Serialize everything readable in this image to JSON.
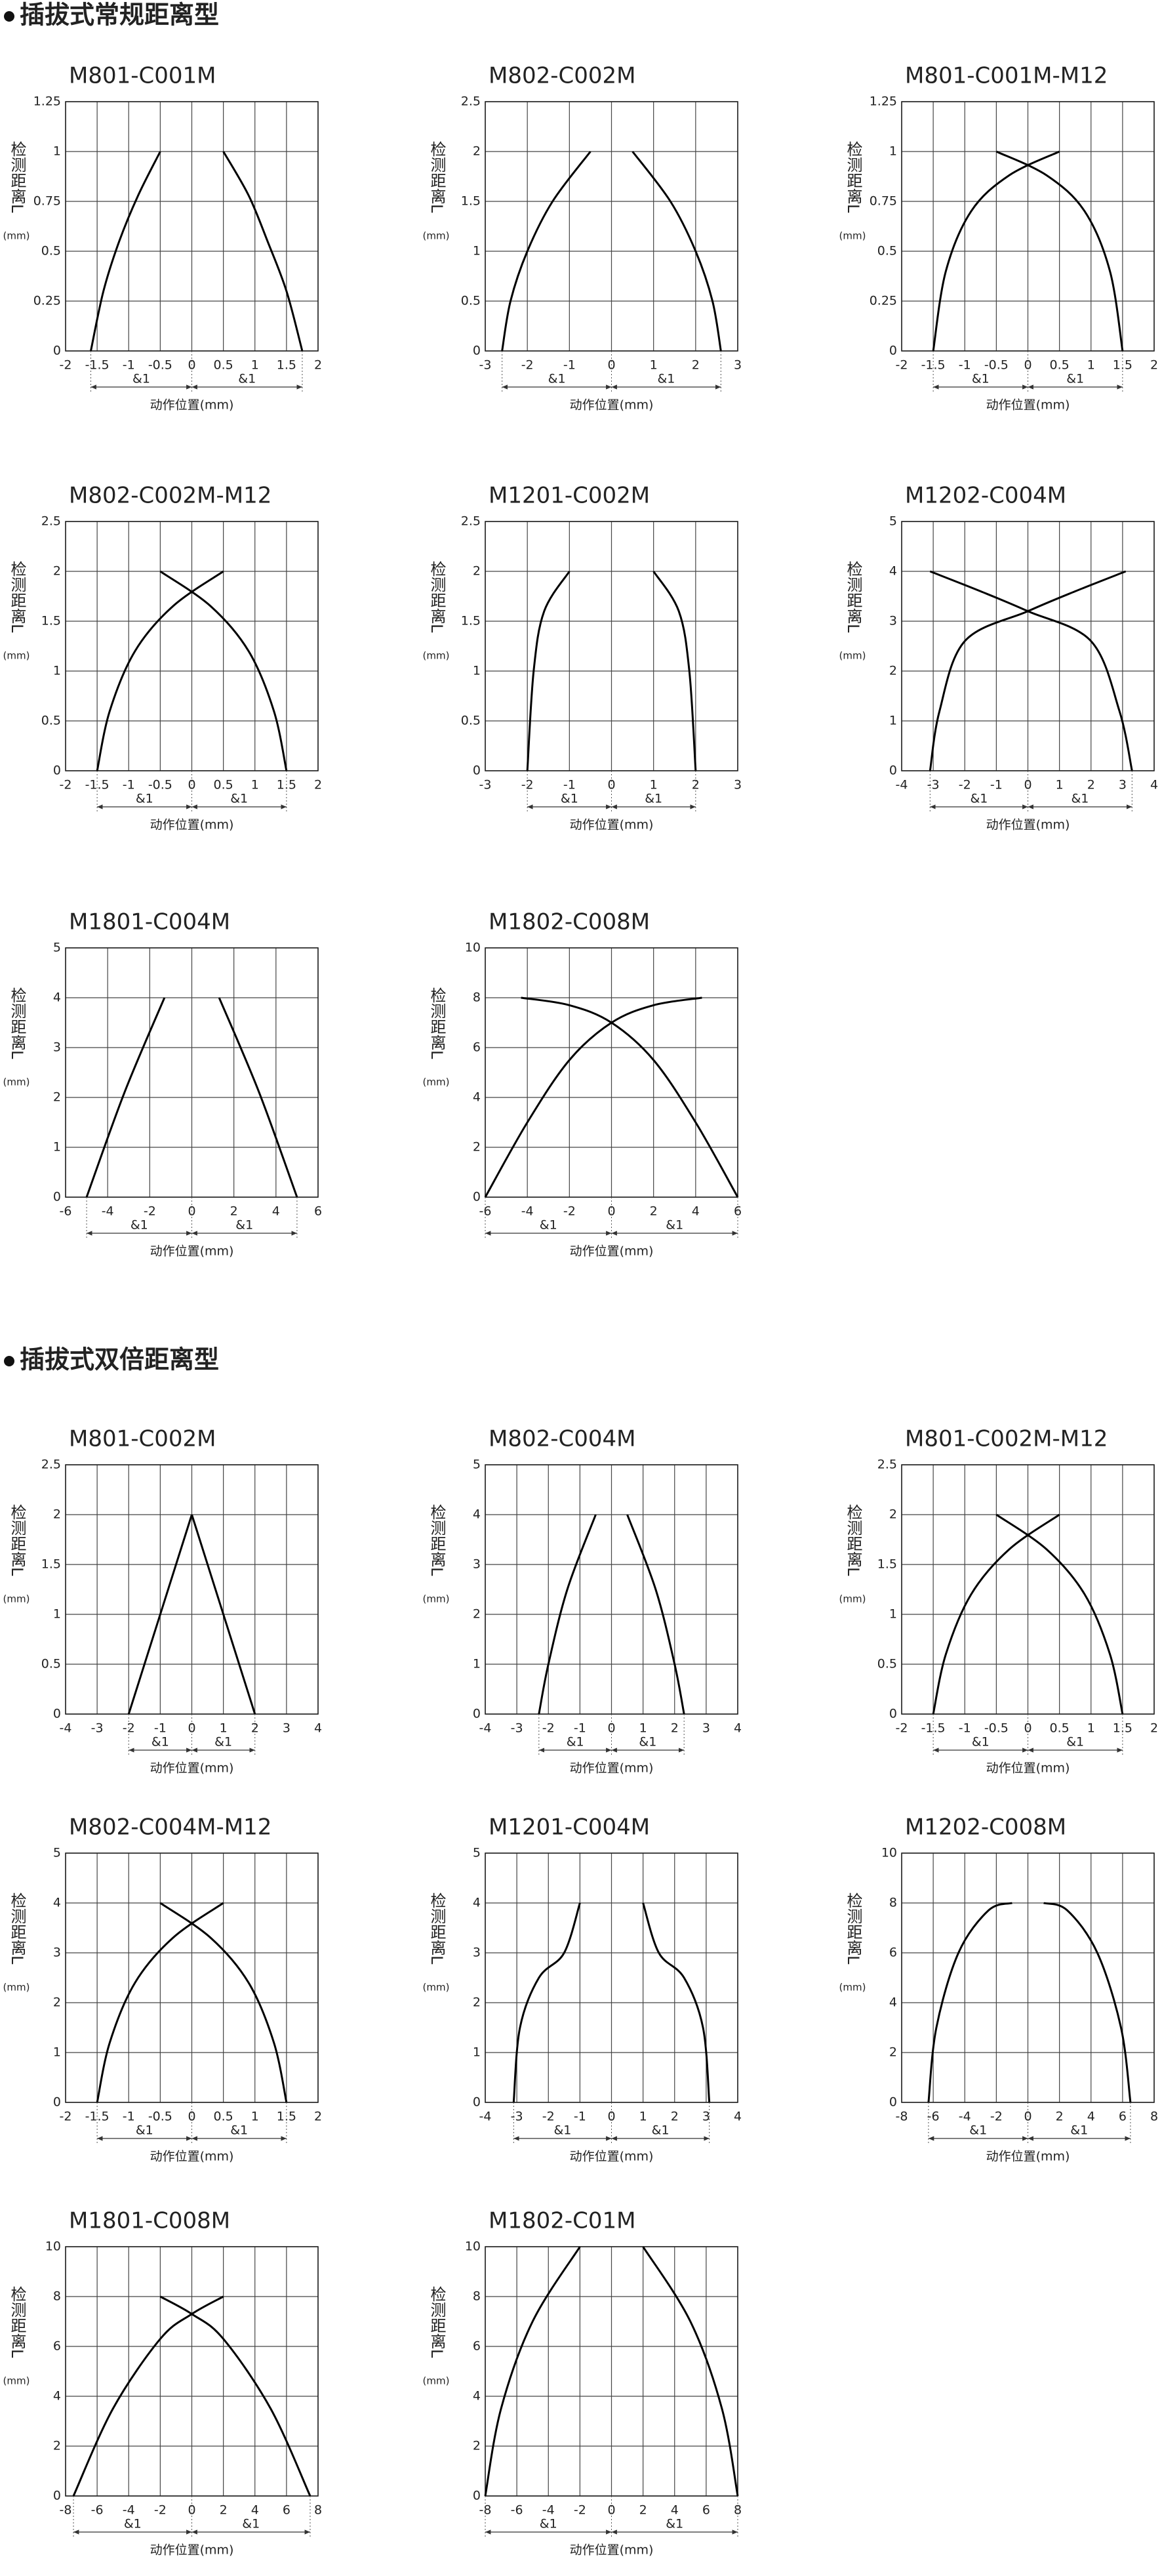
{
  "sections": [
    {
      "title": "插拔式常规距离型"
    },
    {
      "title": "插拔式双倍距离型"
    }
  ],
  "chart_data": [
    {
      "type": "line",
      "title": "M801-C001M",
      "ylabel": "检测距离L",
      "ylabel_unit": "(mm)",
      "xlabel": "动作位置(mm)",
      "annotations": [
        "&1",
        "&1"
      ],
      "xlim": [
        -2,
        2
      ],
      "xticks": [
        -2,
        -1.5,
        -1,
        -0.5,
        0,
        0.5,
        1,
        1.5,
        2
      ],
      "ylim": [
        0,
        1.25
      ],
      "yticks": [
        0,
        0.25,
        0.5,
        0.75,
        1,
        1.25
      ],
      "grid": true,
      "series": [
        {
          "color": "#000000",
          "x": [
            -1.6,
            -1.4,
            -1.15,
            -0.85,
            -0.5
          ],
          "values": [
            0,
            0.3,
            0.55,
            0.78,
            1
          ]
        },
        {
          "color": "#000000",
          "x": [
            0.5,
            0.9,
            1.2,
            1.5,
            1.75
          ],
          "values": [
            1,
            0.78,
            0.55,
            0.3,
            0
          ]
        }
      ]
    },
    {
      "type": "line",
      "title": "M802-C002M",
      "ylabel": "检测距离L",
      "ylabel_unit": "(mm)",
      "xlabel": "动作位置(mm)",
      "annotations": [
        "&1",
        "&1"
      ],
      "xlim": [
        -3,
        3
      ],
      "xticks": [
        -3,
        -2,
        -1,
        0,
        1,
        2,
        3
      ],
      "ylim": [
        0,
        2.5
      ],
      "yticks": [
        0,
        0.5,
        1,
        1.5,
        2,
        2.5
      ],
      "grid": true,
      "series": [
        {
          "color": "#000000",
          "x": [
            -2.6,
            -2.4,
            -2,
            -1.4,
            -0.5
          ],
          "values": [
            0,
            0.5,
            1,
            1.5,
            2
          ]
        },
        {
          "color": "#000000",
          "x": [
            0.5,
            1.4,
            2,
            2.4,
            2.6
          ],
          "values": [
            2,
            1.5,
            1,
            0.5,
            0
          ]
        }
      ]
    },
    {
      "type": "line",
      "title": "M801-C001M-M12",
      "ylabel": "检测距离L",
      "ylabel_unit": "(mm)",
      "xlabel": "动作位置(mm)",
      "annotations": [
        "&1",
        "&1"
      ],
      "xlim": [
        -2,
        2
      ],
      "xticks": [
        -2,
        -1.5,
        -1,
        -0.5,
        0,
        0.5,
        1,
        1.5,
        2
      ],
      "ylim": [
        0,
        1.25
      ],
      "yticks": [
        0,
        0.25,
        0.5,
        0.75,
        1,
        1.25
      ],
      "grid": true,
      "series": [
        {
          "color": "#000000",
          "x": [
            -1.5,
            -1.3,
            -0.9,
            -0.3,
            0.5
          ],
          "values": [
            0,
            0.4,
            0.7,
            0.88,
            1
          ]
        },
        {
          "color": "#000000",
          "x": [
            -0.5,
            0.3,
            0.9,
            1.3,
            1.5
          ],
          "values": [
            1,
            0.88,
            0.7,
            0.4,
            0
          ]
        }
      ]
    },
    {
      "type": "line",
      "title": "M802-C002M-M12",
      "ylabel": "检测距离L",
      "ylabel_unit": "(mm)",
      "xlabel": "动作位置(mm)",
      "annotations": [
        "&1",
        "&1"
      ],
      "xlim": [
        -2,
        2
      ],
      "xticks": [
        -2,
        -1.5,
        -1,
        -0.5,
        0,
        0.5,
        1,
        1.5,
        2
      ],
      "ylim": [
        0,
        2.5
      ],
      "yticks": [
        0,
        0.5,
        1,
        1.5,
        2,
        2.5
      ],
      "grid": true,
      "series": [
        {
          "color": "#000000",
          "x": [
            -1.5,
            -1.3,
            -0.9,
            -0.3,
            0.5
          ],
          "values": [
            0,
            0.6,
            1.2,
            1.65,
            2
          ]
        },
        {
          "color": "#000000",
          "x": [
            -0.5,
            0.3,
            0.9,
            1.3,
            1.5
          ],
          "values": [
            2,
            1.65,
            1.2,
            0.6,
            0
          ]
        }
      ]
    },
    {
      "type": "line",
      "title": "M1201-C002M",
      "ylabel": "检测距离L",
      "ylabel_unit": "(mm)",
      "xlabel": "动作位置(mm)",
      "annotations": [
        "&1",
        "&1"
      ],
      "xlim": [
        -3,
        3
      ],
      "xticks": [
        -3,
        -2,
        -1,
        0,
        1,
        2,
        3
      ],
      "ylim": [
        0,
        2.5
      ],
      "yticks": [
        0,
        0.5,
        1,
        1.5,
        2,
        2.5
      ],
      "grid": true,
      "series": [
        {
          "color": "#000000",
          "x": [
            -2,
            -1.85,
            -1.6,
            -1
          ],
          "values": [
            0,
            1,
            1.6,
            2
          ]
        },
        {
          "color": "#000000",
          "x": [
            1,
            1.6,
            1.85,
            2
          ],
          "values": [
            2,
            1.6,
            1,
            0
          ]
        }
      ]
    },
    {
      "type": "line",
      "title": "M1202-C004M",
      "ylabel": "检测距离L",
      "ylabel_unit": "(mm)",
      "xlabel": "动作位置(mm)",
      "annotations": [
        "&1",
        "&1"
      ],
      "xlim": [
        -4,
        4
      ],
      "xticks": [
        -4,
        -3,
        -2,
        -1,
        0,
        1,
        2,
        3,
        4
      ],
      "ylim": [
        0,
        5
      ],
      "yticks": [
        0,
        1,
        2,
        3,
        4,
        5
      ],
      "grid": true,
      "series": [
        {
          "color": "#000000",
          "x": [
            -3.1,
            -2.8,
            -2,
            0,
            1.5,
            3.1
          ],
          "values": [
            0,
            1.2,
            2.6,
            3.2,
            3.6,
            4
          ]
        },
        {
          "color": "#000000",
          "x": [
            -3.1,
            -1.5,
            0,
            2,
            2.9,
            3.3
          ],
          "values": [
            4,
            3.6,
            3.2,
            2.6,
            1.2,
            0
          ]
        }
      ]
    },
    {
      "type": "line",
      "title": "M1801-C004M",
      "ylabel": "检测距离L",
      "ylabel_unit": "(mm)",
      "xlabel": "动作位置(mm)",
      "annotations": [
        "&1",
        "&1"
      ],
      "xlim": [
        -6,
        6
      ],
      "xticks": [
        -6,
        -4,
        -2,
        0,
        2,
        4,
        6
      ],
      "ylim": [
        0,
        5
      ],
      "yticks": [
        0,
        1,
        2,
        3,
        4,
        5
      ],
      "grid": true,
      "series": [
        {
          "color": "#000000",
          "x": [
            -5,
            -3.2,
            -1.3
          ],
          "values": [
            0,
            2.1,
            4
          ]
        },
        {
          "color": "#000000",
          "x": [
            1.3,
            3.2,
            5
          ],
          "values": [
            4,
            2.1,
            0
          ]
        }
      ]
    },
    {
      "type": "line",
      "title": "M1802-C008M",
      "ylabel": "检测距离L",
      "ylabel_unit": "(mm)",
      "xlabel": "动作位置(mm)",
      "annotations": [
        "&1",
        "&1"
      ],
      "xlim": [
        -6,
        6
      ],
      "xticks": [
        -6,
        -4,
        -2,
        0,
        2,
        4,
        6
      ],
      "ylim": [
        0,
        10
      ],
      "yticks": [
        0,
        2,
        4,
        6,
        8,
        10
      ],
      "grid": true,
      "series": [
        {
          "color": "#000000",
          "x": [
            -6,
            -4,
            -2,
            0,
            2,
            4.3
          ],
          "values": [
            0,
            3,
            5.5,
            7,
            7.7,
            8
          ]
        },
        {
          "color": "#000000",
          "x": [
            -4.3,
            -2,
            0,
            2,
            4,
            6
          ],
          "values": [
            8,
            7.7,
            7,
            5.5,
            3,
            0
          ]
        }
      ]
    },
    {
      "type": "line",
      "title": "M801-C002M",
      "ylabel": "检测距离L",
      "ylabel_unit": "(mm)",
      "xlabel": "动作位置(mm)",
      "annotations": [
        "&1",
        "&1"
      ],
      "xlim": [
        -4,
        4
      ],
      "xticks": [
        -4,
        -3,
        -2,
        -1,
        0,
        1,
        2,
        3,
        4
      ],
      "ylim": [
        0,
        2.5
      ],
      "yticks": [
        0,
        0.5,
        1,
        1.5,
        2,
        2.5
      ],
      "grid": true,
      "series": [
        {
          "color": "#000000",
          "x": [
            -2,
            0
          ],
          "values": [
            0,
            2
          ]
        },
        {
          "color": "#000000",
          "x": [
            0,
            2
          ],
          "values": [
            2,
            0
          ]
        }
      ]
    },
    {
      "type": "line",
      "title": "M802-C004M",
      "ylabel": "检测距离L",
      "ylabel_unit": "(mm)",
      "xlabel": "动作位置(mm)",
      "annotations": [
        "&1",
        "&1"
      ],
      "xlim": [
        -4,
        4
      ],
      "xticks": [
        -4,
        -3,
        -2,
        -1,
        0,
        1,
        2,
        3,
        4
      ],
      "ylim": [
        0,
        5
      ],
      "yticks": [
        0,
        1,
        2,
        3,
        4,
        5
      ],
      "grid": true,
      "series": [
        {
          "color": "#000000",
          "x": [
            -2.3,
            -2,
            -1.4,
            -0.5
          ],
          "values": [
            0,
            1,
            2.5,
            4
          ]
        },
        {
          "color": "#000000",
          "x": [
            0.5,
            1.4,
            2,
            2.3
          ],
          "values": [
            4,
            2.5,
            1,
            0
          ]
        }
      ]
    },
    {
      "type": "line",
      "title": "M801-C002M-M12",
      "ylabel": "检测距离L",
      "ylabel_unit": "(mm)",
      "xlabel": "动作位置(mm)",
      "annotations": [
        "&1",
        "&1"
      ],
      "xlim": [
        -2,
        2
      ],
      "xticks": [
        -2,
        -1.5,
        -1,
        -0.5,
        0,
        0.5,
        1,
        1.5,
        2
      ],
      "ylim": [
        0,
        2.5
      ],
      "yticks": [
        0,
        0.5,
        1,
        1.5,
        2,
        2.5
      ],
      "grid": true,
      "series": [
        {
          "color": "#000000",
          "x": [
            -1.5,
            -1.3,
            -0.9,
            -0.3,
            0.5
          ],
          "values": [
            0,
            0.6,
            1.2,
            1.65,
            2
          ]
        },
        {
          "color": "#000000",
          "x": [
            -0.5,
            0.3,
            0.9,
            1.3,
            1.5
          ],
          "values": [
            2,
            1.65,
            1.2,
            0.6,
            0
          ]
        }
      ]
    },
    {
      "type": "line",
      "title": "M802-C004M-M12",
      "ylabel": "检测距离L",
      "ylabel_unit": "(mm)",
      "xlabel": "动作位置(mm)",
      "annotations": [
        "&1",
        "&1"
      ],
      "xlim": [
        -2,
        2
      ],
      "xticks": [
        -2,
        -1.5,
        -1,
        -0.5,
        0,
        0.5,
        1,
        1.5,
        2
      ],
      "ylim": [
        0,
        5
      ],
      "yticks": [
        0,
        1,
        2,
        3,
        4,
        5
      ],
      "grid": true,
      "series": [
        {
          "color": "#000000",
          "x": [
            -1.5,
            -1.3,
            -0.9,
            -0.3,
            0.5
          ],
          "values": [
            0,
            1.2,
            2.4,
            3.3,
            4
          ]
        },
        {
          "color": "#000000",
          "x": [
            -0.5,
            0.3,
            0.9,
            1.3,
            1.5
          ],
          "values": [
            4,
            3.3,
            2.4,
            1.2,
            0
          ]
        }
      ]
    },
    {
      "type": "line",
      "title": "M1201-C004M",
      "ylabel": "检测距离L",
      "ylabel_unit": "(mm)",
      "xlabel": "动作位置(mm)",
      "annotations": [
        "&1",
        "&1"
      ],
      "xlim": [
        -4,
        4
      ],
      "xticks": [
        -4,
        -3,
        -2,
        -1,
        0,
        1,
        2,
        3,
        4
      ],
      "ylim": [
        0,
        5
      ],
      "yticks": [
        0,
        1,
        2,
        3,
        4,
        5
      ],
      "grid": true,
      "series": [
        {
          "color": "#000000",
          "x": [
            -3.1,
            -2.9,
            -2.3,
            -1.5,
            -1
          ],
          "values": [
            0,
            1.5,
            2.5,
            3,
            4
          ]
        },
        {
          "color": "#000000",
          "x": [
            1,
            1.5,
            2.3,
            2.9,
            3.1
          ],
          "values": [
            4,
            3,
            2.5,
            1.5,
            0
          ]
        }
      ]
    },
    {
      "type": "line",
      "title": "M1202-C008M",
      "ylabel": "检测距离L",
      "ylabel_unit": "(mm)",
      "xlabel": "动作位置(mm)",
      "annotations": [
        "&1",
        "&1"
      ],
      "xlim": [
        -8,
        8
      ],
      "xticks": [
        -8,
        -6,
        -4,
        -2,
        0,
        2,
        4,
        6,
        8
      ],
      "ylim": [
        0,
        10
      ],
      "yticks": [
        0,
        2,
        4,
        6,
        8,
        10
      ],
      "grid": true,
      "series": [
        {
          "color": "#000000",
          "x": [
            -6.3,
            -5.8,
            -4.4,
            -2.5,
            -1
          ],
          "values": [
            0,
            3,
            6,
            7.7,
            8
          ]
        },
        {
          "color": "#000000",
          "x": [
            1,
            2.5,
            4.4,
            5.9,
            6.5
          ],
          "values": [
            8,
            7.7,
            6,
            3,
            0
          ]
        }
      ]
    },
    {
      "type": "line",
      "title": "M1801-C008M",
      "ylabel": "检测距离L",
      "ylabel_unit": "(mm)",
      "xlabel": "动作位置(mm)",
      "annotations": [
        "&1",
        "&1"
      ],
      "xlim": [
        -8,
        8
      ],
      "xticks": [
        -8,
        -6,
        -4,
        -2,
        0,
        2,
        4,
        6,
        8
      ],
      "ylim": [
        0,
        10
      ],
      "yticks": [
        0,
        2,
        4,
        6,
        8,
        10
      ],
      "grid": true,
      "series": [
        {
          "color": "#000000",
          "x": [
            -7.5,
            -5,
            -2,
            0,
            2
          ],
          "values": [
            0,
            3.5,
            6.3,
            7.3,
            8
          ]
        },
        {
          "color": "#000000",
          "x": [
            -2,
            0,
            2,
            5,
            7.5
          ],
          "values": [
            8,
            7.3,
            6.3,
            3.5,
            0
          ]
        }
      ]
    },
    {
      "type": "line",
      "title": "M1802-C01M",
      "ylabel": "检测距离L",
      "ylabel_unit": "(mm)",
      "xlabel": "动作位置(mm)",
      "annotations": [
        "&1",
        "&1"
      ],
      "xlim": [
        -8,
        8
      ],
      "xticks": [
        -8,
        -6,
        -4,
        -2,
        0,
        2,
        4,
        6,
        8
      ],
      "ylim": [
        0,
        10
      ],
      "yticks": [
        0,
        2,
        4,
        6,
        8,
        10
      ],
      "grid": true,
      "series": [
        {
          "color": "#000000",
          "x": [
            -8,
            -7,
            -5,
            -2
          ],
          "values": [
            0,
            3.5,
            7,
            10
          ]
        },
        {
          "color": "#000000",
          "x": [
            2,
            5,
            7,
            8
          ],
          "values": [
            10,
            7,
            3.5,
            0
          ]
        }
      ]
    }
  ]
}
